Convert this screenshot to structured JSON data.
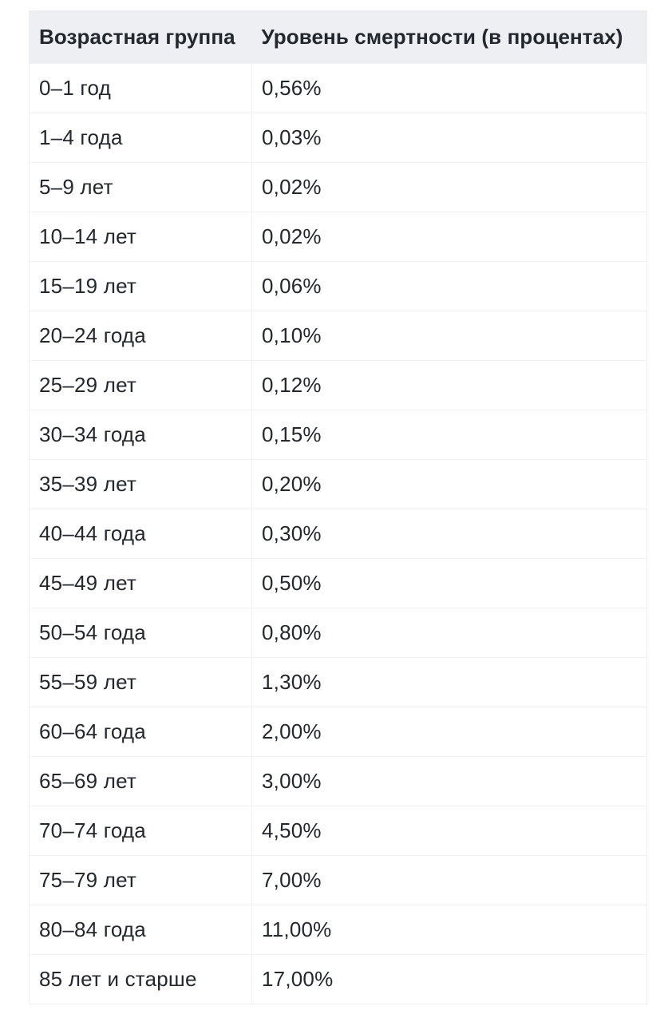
{
  "table": {
    "columns": [
      {
        "key": "age_group",
        "label": "Возрастная группа"
      },
      {
        "key": "mortality_rate",
        "label": "Уровень смертности (в процентах)"
      }
    ],
    "rows": [
      {
        "age_group": "0–1 год",
        "mortality_rate": "0,56%"
      },
      {
        "age_group": "1–4 года",
        "mortality_rate": "0,03%"
      },
      {
        "age_group": "5–9 лет",
        "mortality_rate": "0,02%"
      },
      {
        "age_group": "10–14 лет",
        "mortality_rate": "0,02%"
      },
      {
        "age_group": "15–19 лет",
        "mortality_rate": "0,06%"
      },
      {
        "age_group": "20–24 года",
        "mortality_rate": "0,10%"
      },
      {
        "age_group": "25–29 лет",
        "mortality_rate": "0,12%"
      },
      {
        "age_group": "30–34 года",
        "mortality_rate": "0,15%"
      },
      {
        "age_group": "35–39 лет",
        "mortality_rate": "0,20%"
      },
      {
        "age_group": "40–44 года",
        "mortality_rate": "0,30%"
      },
      {
        "age_group": "45–49 лет",
        "mortality_rate": "0,50%"
      },
      {
        "age_group": "50–54 года",
        "mortality_rate": "0,80%"
      },
      {
        "age_group": "55–59 лет",
        "mortality_rate": "1,30%"
      },
      {
        "age_group": "60–64 года",
        "mortality_rate": "2,00%"
      },
      {
        "age_group": "65–69 лет",
        "mortality_rate": "3,00%"
      },
      {
        "age_group": "70–74 года",
        "mortality_rate": "4,50%"
      },
      {
        "age_group": "75–79 лет",
        "mortality_rate": "7,00%"
      },
      {
        "age_group": "80–84 года",
        "mortality_rate": "11,00%"
      },
      {
        "age_group": "85 лет и старше",
        "mortality_rate": "17,00%"
      }
    ],
    "colors": {
      "header_background": "#edeff2",
      "row_background": "#ffffff",
      "separator": "#f0f1f3",
      "text": "#23272e"
    }
  },
  "chart_data": {
    "type": "table",
    "title": "",
    "columns": [
      "Возрастная группа",
      "Уровень смертности (в процентах)"
    ],
    "categories": [
      "0–1 год",
      "1–4 года",
      "5–9 лет",
      "10–14 лет",
      "15–19 лет",
      "20–24 года",
      "25–29 лет",
      "30–34 года",
      "35–39 лет",
      "40–44 года",
      "45–49 лет",
      "50–54 года",
      "55–59 лет",
      "60–64 года",
      "65–69 лет",
      "70–74 года",
      "75–79 лет",
      "80–84 года",
      "85 лет и старше"
    ],
    "values": [
      0.56,
      0.03,
      0.02,
      0.02,
      0.06,
      0.1,
      0.12,
      0.15,
      0.2,
      0.3,
      0.5,
      0.8,
      1.3,
      2.0,
      3.0,
      4.5,
      7.0,
      11.0,
      17.0
    ],
    "value_unit": "%",
    "decimal_separator": ","
  }
}
